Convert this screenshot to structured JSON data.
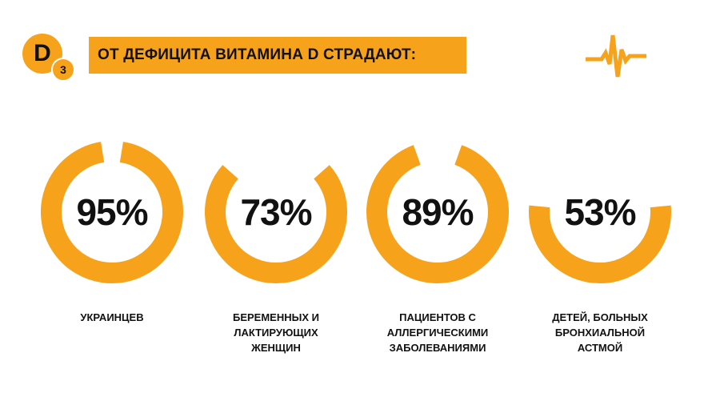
{
  "header": {
    "logo_main": "D",
    "logo_sub": "3",
    "title": "ОТ ДЕФИЦИТА ВИТАМИНА D СТРАДАЮТ:"
  },
  "icons": {
    "pulse": "pulse-line-icon"
  },
  "colors": {
    "accent": "#f7a21b",
    "text": "#111111",
    "background": "#ffffff"
  },
  "chart_data": {
    "type": "pie",
    "series": [
      {
        "value": 95,
        "label": "95%",
        "group": "УКРАИНЦЕВ"
      },
      {
        "value": 73,
        "label": "73%",
        "group": "БЕРЕМЕННЫХ И\nЛАКТИРУЮЩИХ\nЖЕНЩИН"
      },
      {
        "value": 89,
        "label": "89%",
        "group": "ПАЦИЕНТОВ С\nАЛЛЕРГИЧЕСКИМИ\nЗАБОЛЕВАНИЯМИ"
      },
      {
        "value": 53,
        "label": "53%",
        "group": "ДЕТЕЙ, БОЛЬНЫХ\nБРОНХИАЛЬНОЙ\nАСТМОЙ"
      }
    ]
  }
}
